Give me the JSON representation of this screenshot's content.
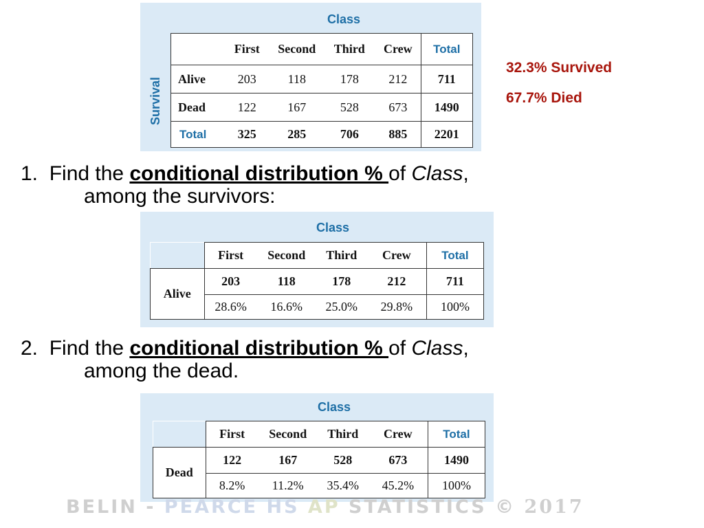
{
  "top_table": {
    "class_title": "Class",
    "survival_title": "Survival",
    "columns": [
      "First",
      "Second",
      "Third",
      "Crew",
      "Total"
    ],
    "rows": [
      {
        "label": "Alive",
        "values": [
          "203",
          "118",
          "178",
          "212",
          "711"
        ]
      },
      {
        "label": "Dead",
        "values": [
          "122",
          "167",
          "528",
          "673",
          "1490"
        ]
      },
      {
        "label": "Total",
        "values": [
          "325",
          "285",
          "706",
          "885",
          "2201"
        ]
      }
    ]
  },
  "stats": {
    "survived": "32.3% Survived",
    "died": "67.7% Died"
  },
  "question1": {
    "num": "1.",
    "pre": "Find the ",
    "emph": "conditional distribution % ",
    "mid": "of ",
    "var": "Class",
    "post": ",",
    "line2": "among the survivors:"
  },
  "alive_table": {
    "class_title": "Class",
    "columns": [
      "First",
      "Second",
      "Third",
      "Crew",
      "Total"
    ],
    "row_label": "Alive",
    "counts": [
      "203",
      "118",
      "178",
      "212",
      "711"
    ],
    "percents": [
      "28.6%",
      "16.6%",
      "25.0%",
      "29.8%",
      "100%"
    ]
  },
  "question2": {
    "num": "2.",
    "pre": "Find the ",
    "emph": "conditional distribution % ",
    "mid": "of ",
    "var": "Class",
    "post": ",",
    "line2": "among the dead."
  },
  "dead_table": {
    "class_title": "Class",
    "columns": [
      "First",
      "Second",
      "Third",
      "Crew",
      "Total"
    ],
    "row_label": "Dead",
    "counts": [
      "122",
      "167",
      "528",
      "673",
      "1490"
    ],
    "percents": [
      "8.2%",
      "11.2%",
      "35.4%",
      "45.2%",
      "100%"
    ]
  },
  "footer": {
    "part1": "BELIN - ",
    "part2": "PEARCE HS ",
    "part3": "AP ",
    "part4": "STATISTICS ",
    "part5": "©",
    "year": "2017"
  }
}
